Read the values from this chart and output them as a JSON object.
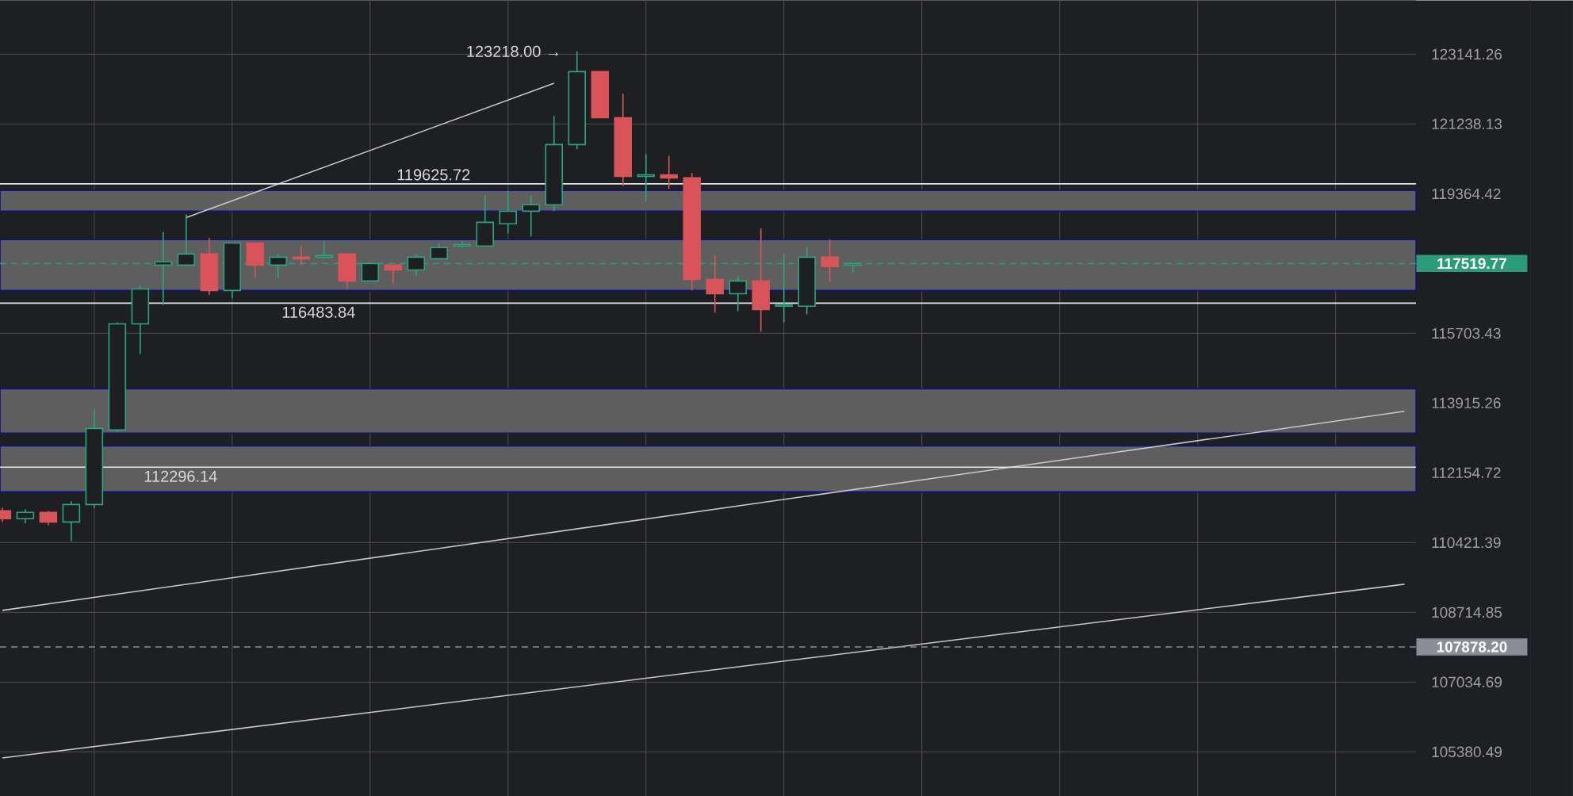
{
  "chart_data": {
    "type": "candlestick",
    "categories": [
      null,
      null,
      null,
      null,
      null,
      null,
      null,
      null,
      null,
      null,
      null,
      null,
      null,
      null,
      null,
      null,
      null,
      null,
      null,
      null,
      null,
      null,
      null,
      null,
      null,
      null,
      null,
      null,
      null,
      null,
      null,
      null,
      null,
      null,
      null,
      null,
      null,
      null,
      null,
      null,
      null,
      null,
      null,
      null,
      null,
      null,
      null,
      null,
      null,
      null,
      null,
      null,
      null,
      null,
      null,
      null,
      null,
      null,
      null,
      null,
      null,
      null
    ],
    "ohlc": [
      [
        111205,
        111284,
        110930,
        111009
      ],
      [
        111009,
        111245,
        110891,
        111166
      ],
      [
        111166,
        111205,
        110852,
        110930
      ],
      [
        110930,
        111442,
        110460,
        111363
      ],
      [
        111363,
        113754,
        111284,
        113272
      ],
      [
        113232,
        115990,
        113191,
        115949
      ],
      [
        115949,
        116940,
        115172,
        116855
      ],
      [
        117478,
        118354,
        116443,
        117561
      ],
      [
        117478,
        118816,
        117436,
        117769
      ],
      [
        117769,
        118187,
        116690,
        116814
      ],
      [
        116814,
        118061,
        116607,
        118061
      ],
      [
        118061,
        118061,
        117145,
        117478
      ],
      [
        117478,
        117769,
        117145,
        117686
      ],
      [
        117686,
        117978,
        117478,
        117644
      ],
      [
        117686,
        118103,
        117644,
        117727
      ],
      [
        117769,
        117769,
        116855,
        117062
      ],
      [
        117062,
        117519,
        117062,
        117519
      ],
      [
        117478,
        117478,
        116979,
        117353
      ],
      [
        117353,
        117769,
        117187,
        117686
      ],
      [
        117644,
        118061,
        117644,
        117936
      ],
      [
        117978,
        118103,
        117936,
        118019
      ],
      [
        117978,
        119322,
        117978,
        118606
      ],
      [
        118564,
        119449,
        118312,
        118900
      ],
      [
        118900,
        119322,
        118229,
        119069
      ],
      [
        119069,
        121453,
        118900,
        120681
      ],
      [
        120681,
        123218,
        120553,
        122663
      ],
      [
        122663,
        122663,
        121410,
        121410
      ],
      [
        121410,
        122056,
        119576,
        119830
      ],
      [
        119830,
        120425,
        119153,
        119872
      ],
      [
        119872,
        120383,
        119491,
        119787
      ],
      [
        119787,
        119915,
        116814,
        117104
      ],
      [
        117104,
        117727,
        116237,
        116731
      ],
      [
        116731,
        117187,
        116278,
        117062
      ],
      [
        117062,
        118438,
        115744,
        116320
      ],
      [
        116402,
        117769,
        115990,
        116443
      ],
      [
        116402,
        117936,
        116196,
        117686
      ],
      [
        117686,
        118145,
        117021,
        117436
      ],
      [
        117478,
        117519,
        117270,
        117519
      ],
      null,
      null,
      null,
      null,
      null,
      null,
      null,
      null,
      null,
      null,
      null,
      null,
      null,
      null,
      null,
      null,
      null,
      null,
      null,
      null,
      null,
      null,
      null,
      null
    ],
    "series": [
      {
        "type": "line",
        "color": "#c8c8c8",
        "values": [
          null,
          null,
          null,
          null,
          null,
          null,
          null,
          null,
          118731,
          null,
          null,
          null,
          null,
          null,
          null,
          null,
          null,
          null,
          null,
          null,
          null,
          null,
          null,
          null,
          122342,
          null,
          null,
          null,
          null,
          null,
          null,
          null,
          null,
          null,
          null,
          null,
          null,
          null,
          null,
          null,
          null,
          null,
          null,
          null,
          null,
          null,
          null,
          null,
          null,
          null,
          null,
          null,
          null,
          null,
          null,
          null,
          null,
          null,
          null,
          null,
          null,
          null
        ]
      },
      {
        "type": "line",
        "color": "#c8c8c8",
        "values": [
          108762,
          null,
          null,
          null,
          null,
          null,
          null,
          null,
          null,
          null,
          null,
          null,
          null,
          null,
          null,
          null,
          null,
          null,
          null,
          null,
          null,
          null,
          null,
          null,
          null,
          null,
          null,
          null,
          null,
          null,
          null,
          null,
          null,
          null,
          null,
          null,
          null,
          null,
          null,
          null,
          null,
          null,
          null,
          null,
          null,
          null,
          null,
          null,
          null,
          null,
          null,
          null,
          null,
          null,
          null,
          null,
          null,
          null,
          null,
          null,
          null,
          113706
        ]
      },
      {
        "type": "line",
        "color": "#c8c8c8",
        "values": [
          105238,
          null,
          null,
          null,
          null,
          null,
          null,
          null,
          null,
          null,
          null,
          null,
          null,
          null,
          null,
          null,
          null,
          null,
          null,
          null,
          null,
          null,
          null,
          null,
          null,
          null,
          null,
          null,
          null,
          null,
          null,
          null,
          null,
          null,
          null,
          null,
          null,
          null,
          null,
          null,
          null,
          null,
          null,
          null,
          null,
          null,
          null,
          null,
          null,
          null,
          null,
          null,
          null,
          null,
          null,
          null,
          null,
          null,
          null,
          null,
          null,
          109400
        ]
      }
    ],
    "log": "y",
    "ylim": [
      104340,
      124632
    ],
    "yticks": [
      123141.26,
      121238.13,
      119364.42,
      115703.43,
      113915.26,
      112154.72,
      110421.39,
      108714.85,
      107034.69,
      105380.49
    ],
    "grid": true,
    "tick_labels": "y",
    "annotations": [
      "123218.00 →"
    ],
    "ref_lines": [
      {
        "axis": "y",
        "value": 119625.72,
        "label": "119625.72",
        "color": "#e6e6e6"
      },
      {
        "axis": "y",
        "value": 116483.84,
        "label": "116483.84",
        "color": "#e6e6e6"
      },
      {
        "axis": "y",
        "value": 112296.14,
        "label": "112296.14",
        "color": "#e6e6e6"
      },
      {
        "axis": "y",
        "value": 117519.77,
        "label": "117519.77",
        "color": "#2a9d78",
        "line_style": "dashed"
      },
      {
        "axis": "y",
        "value": 107878.2,
        "label": "107878.20",
        "color": "#8a8d96",
        "line_style": "dashed"
      }
    ],
    "bands": [
      {
        "axis": "y",
        "from": 116814,
        "to": 118145,
        "color": "#5e5e5e"
      },
      {
        "axis": "y",
        "from": 118900,
        "to": 119449,
        "color": "#5e5e5e"
      },
      {
        "axis": "y",
        "from": 113151,
        "to": 114278,
        "color": "#5e5e5e"
      },
      {
        "axis": "y",
        "from": 111679,
        "to": 112832,
        "color": "#5e5e5e"
      }
    ]
  }
}
